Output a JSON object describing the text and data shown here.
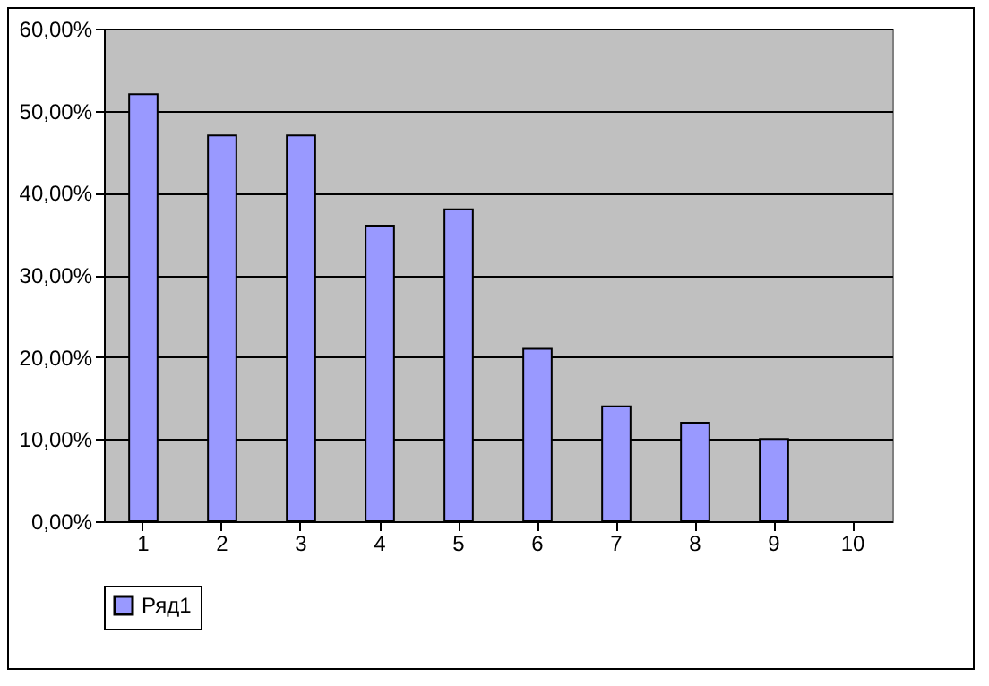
{
  "chart_data": {
    "type": "bar",
    "categories": [
      "1",
      "2",
      "3",
      "4",
      "5",
      "6",
      "7",
      "8",
      "9",
      "10"
    ],
    "series": [
      {
        "name": "Ряд1",
        "color": "#9999ff",
        "values": [
          52,
          47,
          47,
          36,
          38,
          21,
          14,
          12,
          10,
          null
        ]
      }
    ],
    "ylim": [
      0,
      60
    ],
    "yticks": [
      {
        "value": 0,
        "label": "0,00%"
      },
      {
        "value": 10,
        "label": "10,00%"
      },
      {
        "value": 20,
        "label": "20,00%"
      },
      {
        "value": 30,
        "label": "30,00%"
      },
      {
        "value": 40,
        "label": "40,00%"
      },
      {
        "value": 50,
        "label": "50,00%"
      },
      {
        "value": 60,
        "label": "60,00%"
      }
    ],
    "grid": "y",
    "legend": "bottom"
  }
}
